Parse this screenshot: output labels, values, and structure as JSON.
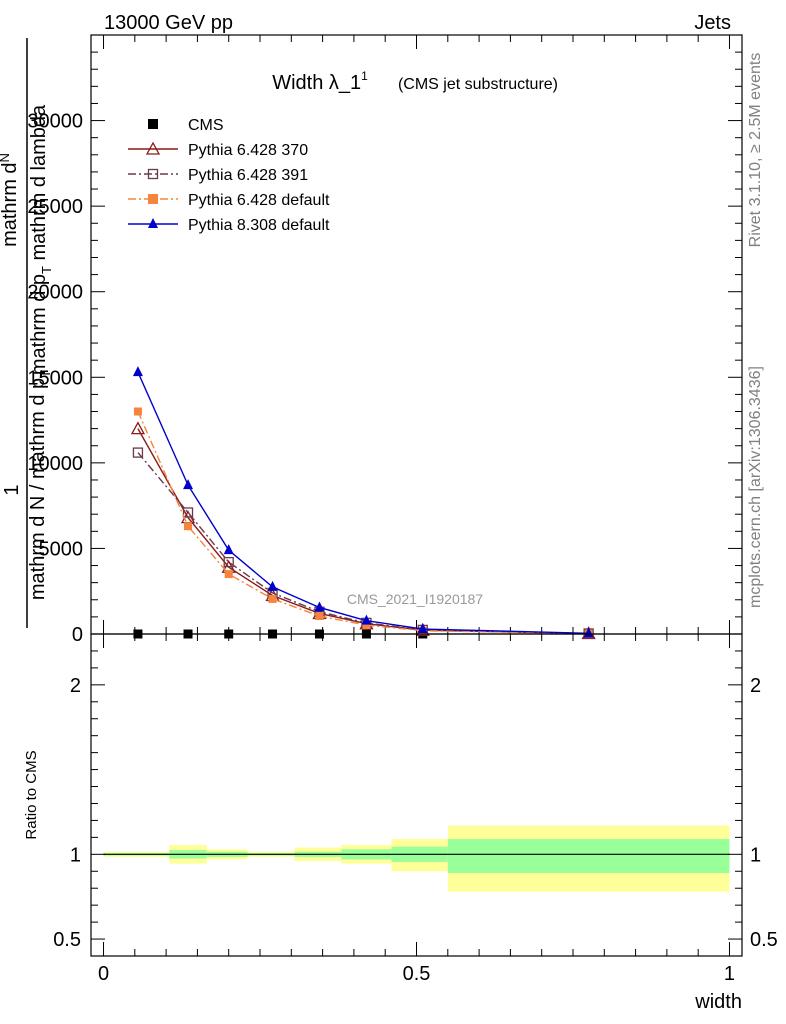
{
  "header": {
    "left": "13000 GeV pp",
    "right": "Jets"
  },
  "side_labels": {
    "rivet": "Rivet 3.1.10, ≥ 2.5M events",
    "mcplots": "mcplots.cern.ch [arXiv:1306.3436]"
  },
  "chart_data": [
    {
      "type": "line",
      "title": "Width λ_1",
      "title_sup": "1",
      "subtitle": "(CMS jet substructure)",
      "watermark": "CMS_2021_I1920187",
      "ylabel_numerator": "1",
      "ylabel_num_parts": [
        "mathrm d",
        "N"
      ],
      "ylabel_den_parts": [
        "mathrm d p",
        "T",
        " mathrm d lambda"
      ],
      "ylabel_bottom_parts": [
        "mathrm d N / mathrm d p",
        "T"
      ],
      "xlim": [
        -0.02,
        1.02
      ],
      "ylim": [
        0,
        35000
      ],
      "yticks": [
        0,
        5000,
        10000,
        15000,
        20000,
        25000,
        30000
      ],
      "ytick_labels": [
        "0",
        "5000",
        "10000",
        "15000",
        "20000",
        "25000",
        "30000"
      ],
      "legend_position": "top-left",
      "series": [
        {
          "name": "CMS",
          "color": "#000000",
          "marker": "square-filled",
          "x": [
            0.055,
            0.135,
            0.2,
            0.27,
            0.345,
            0.42,
            0.51,
            0.775
          ],
          "y": [
            0,
            0,
            0,
            0,
            0,
            0,
            0,
            0
          ]
        },
        {
          "name": "Pythia 6.428 370",
          "color": "#8b1a1a",
          "marker": "triangle-open",
          "dash": "solid",
          "x": [
            0.055,
            0.135,
            0.2,
            0.27,
            0.345,
            0.42,
            0.51,
            0.775
          ],
          "y": [
            12000,
            6800,
            3900,
            2250,
            1200,
            600,
            220,
            30
          ]
        },
        {
          "name": "Pythia 6.428 391",
          "color": "#6b3a4a",
          "marker": "square-open",
          "dash": "dashdot",
          "x": [
            0.055,
            0.135,
            0.2,
            0.27,
            0.345,
            0.42,
            0.51,
            0.775
          ],
          "y": [
            10600,
            7100,
            4200,
            2400,
            1300,
            650,
            240,
            30
          ]
        },
        {
          "name": "Pythia 6.428 default",
          "color": "#f5843c",
          "marker": "square-filled",
          "dash": "dashdot",
          "x": [
            0.055,
            0.135,
            0.2,
            0.27,
            0.345,
            0.42,
            0.51,
            0.775
          ],
          "y": [
            13000,
            6300,
            3500,
            2050,
            1050,
            520,
            190,
            25
          ]
        },
        {
          "name": "Pythia 8.308 default",
          "color": "#0000cc",
          "marker": "triangle-filled",
          "dash": "solid",
          "x": [
            0.055,
            0.135,
            0.2,
            0.27,
            0.345,
            0.42,
            0.51,
            0.775
          ],
          "y": [
            15300,
            8700,
            4900,
            2750,
            1550,
            780,
            290,
            40
          ]
        }
      ]
    },
    {
      "type": "area",
      "ylabel": "Ratio to CMS",
      "xlabel": "width",
      "xlim": [
        -0.02,
        1.02
      ],
      "ylim": [
        0.4,
        2.3
      ],
      "xticks": [
        0,
        0.5,
        1
      ],
      "xtick_labels": [
        "0",
        "0.5",
        "1"
      ],
      "yticks": [
        0.5,
        1,
        2
      ],
      "ytick_labels": [
        "0.5",
        "1",
        "2"
      ],
      "bands": [
        {
          "x0": 0.0,
          "x1": 0.105,
          "y_lo": 0.985,
          "y_hi": 1.015,
          "g_lo": 0.993,
          "g_hi": 1.007
        },
        {
          "x0": 0.105,
          "x1": 0.165,
          "y_lo": 0.945,
          "y_hi": 1.055,
          "g_lo": 0.975,
          "g_hi": 1.025
        },
        {
          "x0": 0.165,
          "x1": 0.23,
          "y_lo": 0.97,
          "y_hi": 1.03,
          "g_lo": 0.985,
          "g_hi": 1.015
        },
        {
          "x0": 0.23,
          "x1": 0.305,
          "y_lo": 0.985,
          "y_hi": 1.015,
          "g_lo": 0.993,
          "g_hi": 1.007
        },
        {
          "x0": 0.305,
          "x1": 0.38,
          "y_lo": 0.96,
          "y_hi": 1.04,
          "g_lo": 0.985,
          "g_hi": 1.015
        },
        {
          "x0": 0.38,
          "x1": 0.46,
          "y_lo": 0.945,
          "y_hi": 1.055,
          "g_lo": 0.97,
          "g_hi": 1.03
        },
        {
          "x0": 0.46,
          "x1": 0.55,
          "y_lo": 0.9,
          "y_hi": 1.09,
          "g_lo": 0.955,
          "g_hi": 1.045
        },
        {
          "x0": 0.55,
          "x1": 1.0,
          "y_lo": 0.78,
          "y_hi": 1.17,
          "g_lo": 0.89,
          "g_hi": 1.09
        }
      ],
      "band_colors": {
        "outer": "#ffff99",
        "inner": "#99ff99"
      }
    }
  ]
}
